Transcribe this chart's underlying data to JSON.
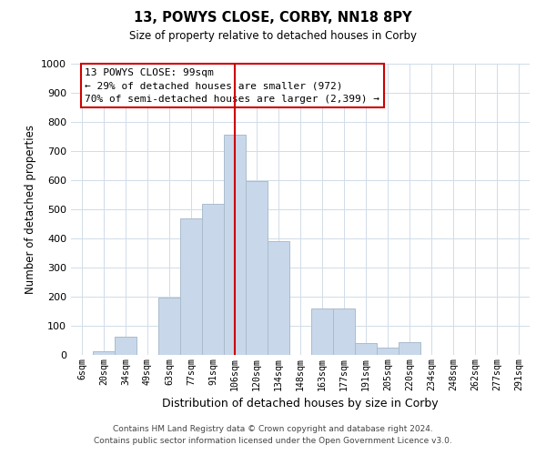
{
  "title": "13, POWYS CLOSE, CORBY, NN18 8PY",
  "subtitle": "Size of property relative to detached houses in Corby",
  "xlabel": "Distribution of detached houses by size in Corby",
  "ylabel": "Number of detached properties",
  "bar_labels": [
    "6sqm",
    "20sqm",
    "34sqm",
    "49sqm",
    "63sqm",
    "77sqm",
    "91sqm",
    "106sqm",
    "120sqm",
    "134sqm",
    "148sqm",
    "163sqm",
    "177sqm",
    "191sqm",
    "205sqm",
    "220sqm",
    "234sqm",
    "248sqm",
    "262sqm",
    "277sqm",
    "291sqm"
  ],
  "bar_values": [
    0,
    13,
    62,
    0,
    197,
    470,
    519,
    757,
    596,
    390,
    0,
    160,
    160,
    42,
    25,
    45,
    0,
    0,
    0,
    0,
    0
  ],
  "bar_color": "#c8d8ea",
  "bar_edge_color": "#aabccc",
  "vline_x": 7,
  "vline_color": "#cc0000",
  "annotation_line1": "13 POWYS CLOSE: 99sqm",
  "annotation_line2": "← 29% of detached houses are smaller (972)",
  "annotation_line3": "70% of semi-detached houses are larger (2,399) →",
  "ylim": [
    0,
    1000
  ],
  "yticks": [
    0,
    100,
    200,
    300,
    400,
    500,
    600,
    700,
    800,
    900,
    1000
  ],
  "footer_line1": "Contains HM Land Registry data © Crown copyright and database right 2024.",
  "footer_line2": "Contains public sector information licensed under the Open Government Licence v3.0.",
  "background_color": "#ffffff",
  "grid_color": "#d0dce8"
}
